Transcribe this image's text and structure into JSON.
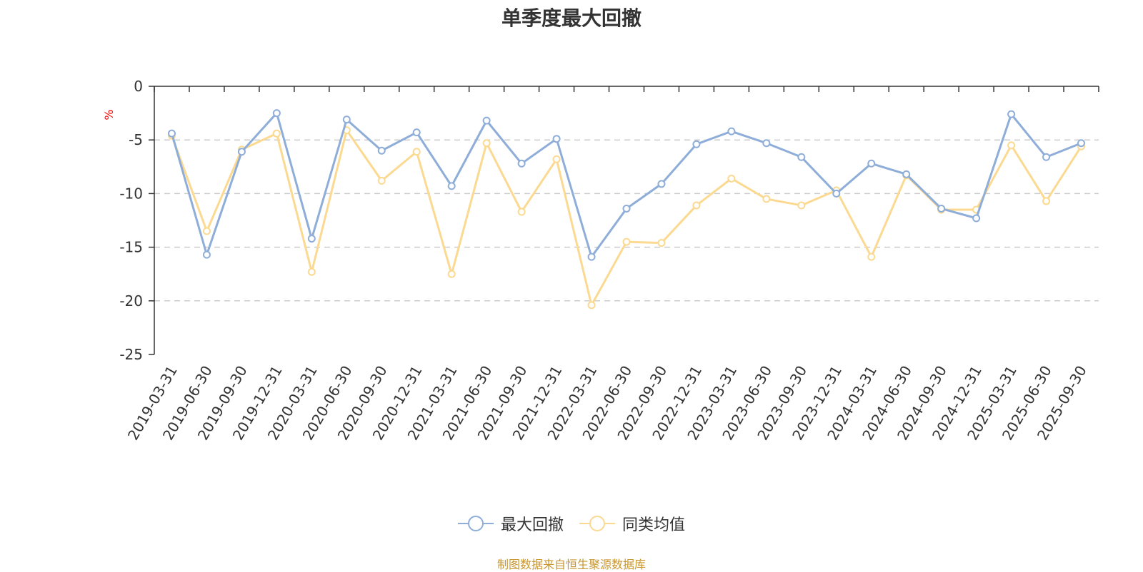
{
  "chart_data": {
    "type": "line",
    "title": "单季度最大回撤",
    "xlabel": "",
    "ylabel": "%",
    "ylim": [
      -25,
      0
    ],
    "yticks": [
      0,
      -5,
      -10,
      -15,
      -20,
      -25
    ],
    "grid": true,
    "legend_position": "bottom-center",
    "categories": [
      "2019-03-31",
      "2019-06-30",
      "2019-09-30",
      "2019-12-31",
      "2020-03-31",
      "2020-06-30",
      "2020-09-30",
      "2020-12-31",
      "2021-03-31",
      "2021-06-30",
      "2021-09-30",
      "2021-12-31",
      "2022-03-31",
      "2022-06-30",
      "2022-09-30",
      "2022-12-31",
      "2023-03-31",
      "2023-06-30",
      "2023-09-30",
      "2023-12-31",
      "2024-03-31",
      "2024-06-30",
      "2024-09-30",
      "2024-12-31",
      "2025-03-31",
      "2025-06-30",
      "2025-09-30"
    ],
    "series": [
      {
        "name": "最大回撤",
        "color": "#8eadd8",
        "values": [
          -4.4,
          -15.7,
          -6.1,
          -2.5,
          -14.2,
          -3.1,
          -6.0,
          -4.3,
          -9.3,
          -3.2,
          -7.2,
          -4.9,
          -15.9,
          -11.4,
          -9.1,
          -5.4,
          -4.2,
          -5.3,
          -6.6,
          -10.0,
          -7.2,
          -8.2,
          -11.4,
          -12.3,
          -2.6,
          -6.6,
          -5.3
        ]
      },
      {
        "name": "同类均值",
        "color": "#fbd990",
        "values": [
          -4.6,
          -13.5,
          -5.9,
          -4.4,
          -17.3,
          -4.1,
          -8.8,
          -6.1,
          -17.5,
          -5.3,
          -11.7,
          -6.8,
          -20.4,
          -14.5,
          -14.6,
          -11.1,
          -8.6,
          -10.5,
          -11.1,
          -9.7,
          -15.9,
          -8.3,
          -11.5,
          -11.5,
          -5.5,
          -10.7,
          -5.6
        ]
      }
    ]
  },
  "source_note": "制图数据来自恒生聚源数据库"
}
